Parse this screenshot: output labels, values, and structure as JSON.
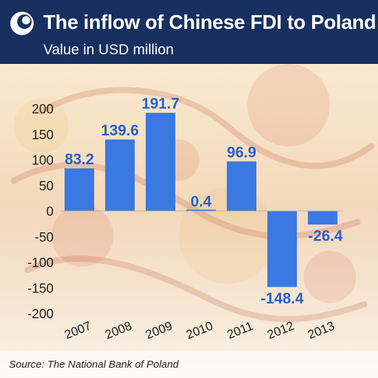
{
  "header": {
    "title": "The inflow of Chinese FDI to Poland",
    "subtitle": "Value in USD million",
    "background_color": "#17305f",
    "logo_icon": "crescent-logo-icon"
  },
  "source": "Source: The National Bank of Poland",
  "colors": {
    "bar": "#3a78e2",
    "value_label": "#2860c9",
    "axis_text": "#222222"
  },
  "chart_data": {
    "type": "bar",
    "categories": [
      "2007",
      "2008",
      "2009",
      "2010",
      "2011",
      "2012",
      "2013"
    ],
    "values": [
      83.2,
      139.6,
      191.7,
      0.4,
      96.9,
      -148.4,
      -26.4
    ],
    "value_labels": [
      "83.2",
      "139.6",
      "191.7",
      "0.4",
      "96.9",
      "-148.4",
      "-26.4"
    ],
    "title": "The inflow of Chinese FDI to Poland",
    "subtitle": "Value in USD million",
    "xlabel": "",
    "ylabel": "",
    "ylim": [
      -200,
      200
    ],
    "yticks": [
      200,
      150,
      100,
      50,
      0,
      -50,
      -100,
      -150,
      -200
    ],
    "ytick_labels": [
      "200",
      "150",
      "100",
      "50",
      "0",
      "-50",
      "-100",
      "-150",
      "-200"
    ],
    "grid": false,
    "legend": "none"
  }
}
